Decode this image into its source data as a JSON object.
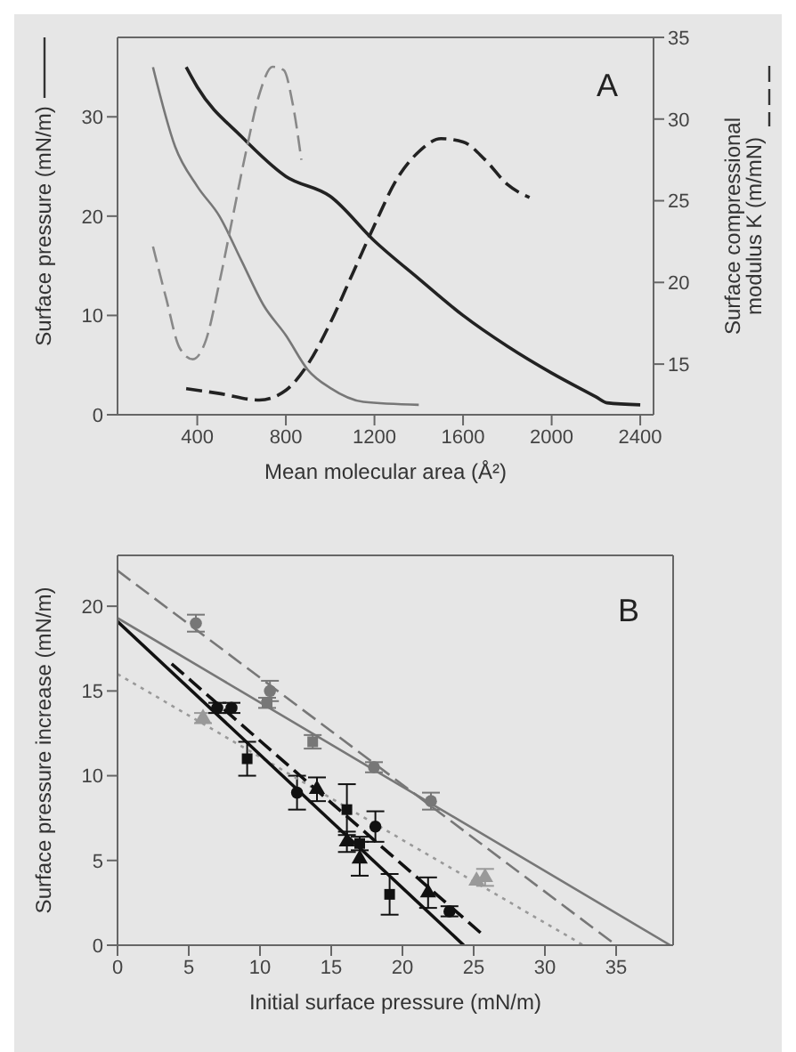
{
  "chart_data": [
    {
      "type": "line",
      "title": "A",
      "xlabel": "Mean molecular area (Å²)",
      "ylabel": "Surface pressure (mN/m)",
      "y2label": "Surface compressional modulus K (m/mN)",
      "xlim": [
        40,
        2460
      ],
      "xticks": [
        400,
        800,
        1200,
        1600,
        2000,
        2400
      ],
      "ylim": [
        0,
        38
      ],
      "yticks": [
        0,
        10,
        20,
        30
      ],
      "y2lim": [
        11.9,
        35
      ],
      "y2ticks": [
        15,
        20,
        25,
        30,
        35
      ],
      "series": [
        {
          "color": "#222222",
          "line_style": "solid",
          "x": [
            350,
            400,
            600,
            800,
            1000,
            1200,
            1400,
            1600,
            1800,
            2000,
            2200,
            2250,
            2400
          ],
          "values": [
            35,
            33,
            28,
            24,
            22,
            17.5,
            13.7,
            10,
            6.9,
            4.2,
            1.8,
            1.2,
            1
          ]
        },
        {
          "color": "#777777",
          "line_style": "solid",
          "x": [
            200,
            300,
            400,
            500,
            600,
            700,
            800,
            900,
            1000,
            1150,
            1400
          ],
          "values": [
            35,
            27,
            23,
            20,
            15.5,
            11,
            8,
            4.5,
            2.7,
            1.3,
            1
          ]
        },
        {
          "color": "#888888",
          "line_style": "dashed",
          "axis": "y2",
          "x": [
            200,
            260,
            320,
            380,
            440,
            500,
            560,
            620,
            680,
            740,
            790,
            830,
            870
          ],
          "values": [
            22.2,
            19,
            16,
            15.3,
            16.5,
            20,
            24,
            28,
            31.5,
            33.2,
            33,
            31,
            27.5
          ]
        },
        {
          "color": "#222222",
          "line_style": "dashed",
          "axis": "y2",
          "x": [
            350,
            500,
            680,
            800,
            900,
            1000,
            1100,
            1200,
            1300,
            1400,
            1500,
            1600,
            1700,
            1800,
            1900
          ],
          "values": [
            13.5,
            13.2,
            12.8,
            13.4,
            15,
            17.5,
            20.5,
            23.5,
            26.3,
            28,
            28.8,
            28.6,
            27.5,
            26,
            25.2
          ]
        }
      ]
    },
    {
      "type": "scatter",
      "title": "B",
      "xlabel": "Initial surface pressure (mN/m)",
      "ylabel": "Surface pressure increase (mN/m)",
      "xlim": [
        0,
        39
      ],
      "xticks": [
        0,
        5,
        10,
        15,
        20,
        25,
        30,
        35
      ],
      "ylim": [
        0,
        23
      ],
      "yticks": [
        0,
        5,
        10,
        15,
        20
      ],
      "series": [
        {
          "color": "#777777",
          "marker": "circle",
          "x": [
            5.5,
            10.7,
            18,
            22
          ],
          "values": [
            19,
            15,
            10.5,
            8.5
          ],
          "errors": [
            0.5,
            0.6,
            0.3,
            0.5
          ]
        },
        {
          "color": "#777777",
          "marker": "square",
          "x": [
            10.5,
            13.7
          ],
          "values": [
            14.3,
            12
          ],
          "errors": [
            0.3,
            0.4
          ]
        },
        {
          "color": "#999999",
          "marker": "triangle",
          "x": [
            6,
            25.2,
            25.8
          ],
          "values": [
            13.4,
            3.8,
            4
          ],
          "errors": [
            0.3,
            null,
            0.5
          ]
        },
        {
          "color": "#111111",
          "marker": "circle",
          "x": [
            7,
            8,
            12.6,
            18.1,
            23.3
          ],
          "values": [
            14,
            14,
            9,
            7,
            2
          ],
          "errors": [
            0.3,
            0.3,
            1,
            0.9,
            0.3
          ]
        },
        {
          "color": "#111111",
          "marker": "square",
          "x": [
            9.1,
            16.1,
            17,
            19.1
          ],
          "values": [
            11,
            8,
            6,
            3
          ],
          "errors": [
            1,
            1.5,
            0.4,
            1.2
          ]
        },
        {
          "color": "#111111",
          "marker": "triangle",
          "x": [
            14,
            16.1,
            17,
            21.8
          ],
          "values": [
            9.2,
            6.1,
            5.1,
            3.1
          ],
          "errors": [
            0.7,
            0.6,
            1,
            0.9
          ]
        },
        {
          "type": "line",
          "color": "#777777",
          "line_style": "dashed",
          "x": [
            0,
            35
          ],
          "values": [
            22.1,
            0
          ]
        },
        {
          "type": "line",
          "color": "#777777",
          "line_style": "solid",
          "x": [
            0,
            38.8
          ],
          "values": [
            19.3,
            0
          ]
        },
        {
          "type": "line",
          "color": "#999999",
          "line_style": "dotted",
          "x": [
            0,
            32.7
          ],
          "values": [
            16,
            0
          ]
        },
        {
          "type": "line",
          "color": "#111111",
          "line_style": "solid",
          "x": [
            0,
            24.3
          ],
          "values": [
            19.1,
            0
          ]
        },
        {
          "type": "line",
          "color": "#111111",
          "line_style": "dashed",
          "x": [
            3.8,
            25.8
          ],
          "values": [
            16.6,
            0.5
          ]
        }
      ]
    }
  ]
}
